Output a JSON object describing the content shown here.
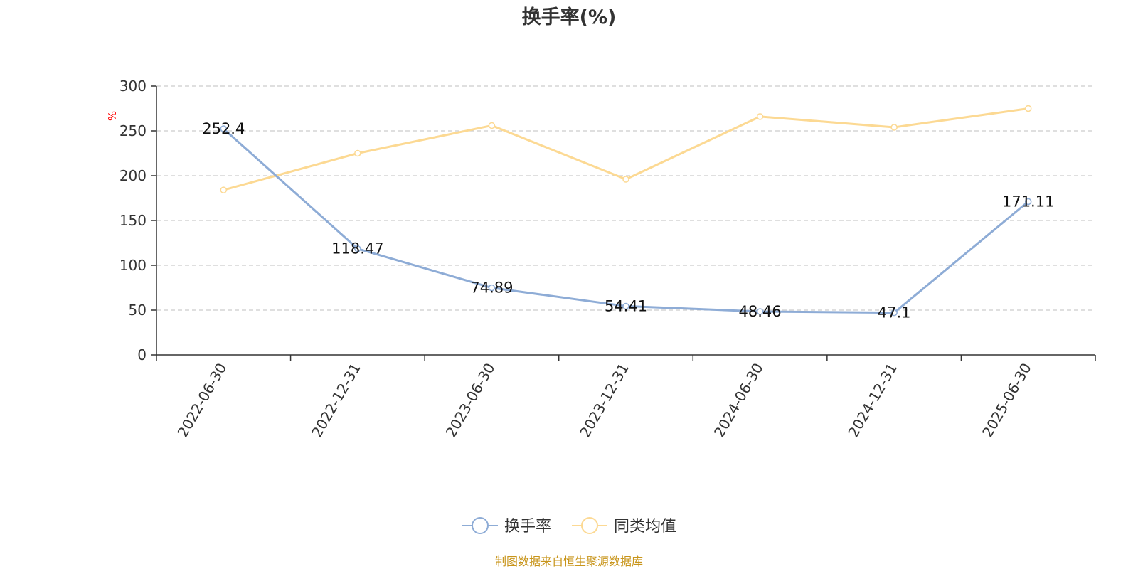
{
  "colors": {
    "turnover": "#8eacd6",
    "peer_avg": "#fcd993",
    "axis": "#333333",
    "grid": "#cccccc",
    "unit": "#ff0000",
    "source": "#c8951b"
  },
  "chart_data": {
    "type": "line",
    "title": "换手率(%)",
    "ylabel": "%",
    "ylim": [
      0,
      300
    ],
    "yticks": [
      0,
      50,
      100,
      150,
      200,
      250,
      300
    ],
    "grid": true,
    "legend_position": "bottom-center",
    "categories": [
      "2022-06-30",
      "2022-12-31",
      "2023-06-30",
      "2023-12-31",
      "2024-06-30",
      "2024-12-31",
      "2025-06-30"
    ],
    "series": [
      {
        "name": "换手率",
        "values": [
          252.4,
          118.47,
          74.89,
          54.41,
          48.46,
          47.1,
          171.11
        ],
        "labels": [
          "252.4",
          "118.47",
          "74.89",
          "54.41",
          "48.46",
          "47.1",
          "171.11"
        ]
      },
      {
        "name": "同类均值",
        "values": [
          184,
          225,
          256,
          196,
          266,
          254,
          275
        ]
      }
    ]
  },
  "footer": {
    "source": "制图数据来自恒生聚源数据库"
  }
}
